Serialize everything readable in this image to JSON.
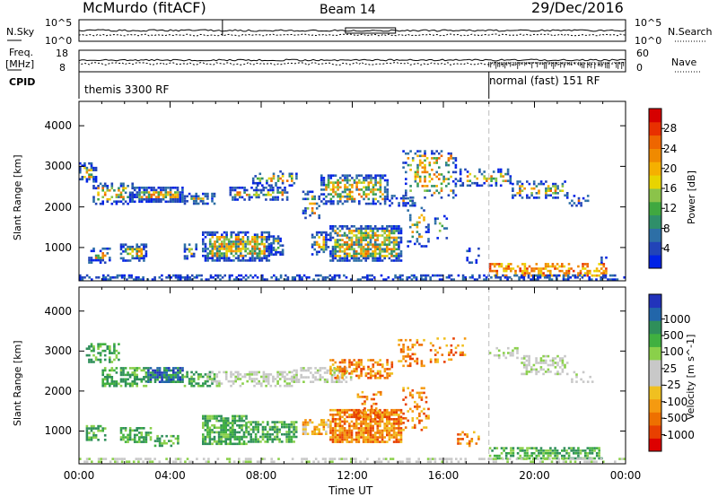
{
  "header": {
    "station": "McMurdo (fitACF)",
    "beam": "Beam 14",
    "date": "29/Dec/2016"
  },
  "status_panel": {
    "left_top_label": "N.Sky",
    "left_top_ticks": [
      "10^5",
      "10^0"
    ],
    "right_top_label": "N.Search",
    "right_top_ticks": [
      "10^5",
      "10^0"
    ],
    "freq_label_1": "Freq.",
    "freq_label_2": "[MHz]",
    "freq_ticks": [
      "18",
      "8"
    ],
    "nave_label": "Nave",
    "nave_ticks": [
      "60",
      "0"
    ],
    "cpid_label": "CPID",
    "cpid_segments": [
      {
        "label": "themis 3300 RF",
        "start_hour": 0
      },
      {
        "label": "normal (fast) 151 RF",
        "start_hour": 18
      }
    ]
  },
  "chart_data": [
    {
      "type": "heatmap",
      "name": "power",
      "xlabel": "",
      "ylabel": "Slant Range [km]",
      "xlim": [
        0,
        24
      ],
      "ylim": [
        180,
        4600
      ],
      "yticks": [
        1000,
        2000,
        3000,
        4000
      ],
      "colorbar_label": "Power [dB]",
      "colorbar_ticks": [
        4,
        8,
        12,
        16,
        20,
        24,
        28
      ],
      "colorbar_range": [
        0,
        32
      ],
      "colorbar_colors": [
        "#0022e6",
        "#2244b8",
        "#2d6fa6",
        "#2f8f6a",
        "#40a840",
        "#8bc34a",
        "#e8d400",
        "#f5b000",
        "#f08a00",
        "#ee6600",
        "#e83000",
        "#d60000"
      ]
    },
    {
      "type": "heatmap",
      "name": "velocity",
      "xlabel": "Time UT",
      "ylabel": "Slant Range [km]",
      "xlim": [
        0,
        24
      ],
      "ylim": [
        180,
        4600
      ],
      "yticks": [
        1000,
        2000,
        3000,
        4000
      ],
      "xticks": [
        "00:00",
        "04:00",
        "08:00",
        "12:00",
        "16:00",
        "20:00",
        "00:00"
      ],
      "colorbar_label": "Velocity [m s^-1]",
      "colorbar_ticks": [
        "1000",
        "500",
        "100",
        "25",
        "-25",
        "-100",
        "-500",
        "-1000"
      ],
      "colorbar_colors": [
        "#2233bb",
        "#2266aa",
        "#2f8f5a",
        "#40b040",
        "#8ad04a",
        "#c8c8c8",
        "#c8c8c8",
        "#f0c020",
        "#f59a10",
        "#ee7000",
        "#e84000",
        "#dd0000"
      ]
    }
  ]
}
